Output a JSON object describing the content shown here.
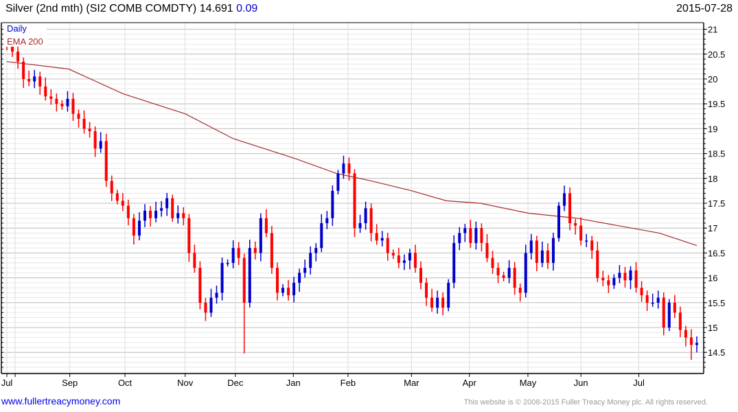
{
  "header": {
    "title": "Silver (2nd mth) (SI2 COMB COMDTY)",
    "last": "14.691",
    "change": "0.09",
    "date": "2015-07-28"
  },
  "footer": {
    "link": "www.fullertreacymoney.com",
    "copyright": "This website is © 2008-2015 Fuller Treacy Money plc. All rights reserved."
  },
  "colors": {
    "up": "#0000cc",
    "down": "#ff0000",
    "ema": "#a52a2a",
    "grid_major": "#c0c0c0",
    "grid_minor": "#e8e8e8"
  },
  "chart_data": {
    "type": "candlestick",
    "legend": [
      "Daily",
      "EMA 200"
    ],
    "legend_placement": "top-left",
    "ylim": [
      14.1,
      21.1
    ],
    "y_ticks": [
      "14.5",
      "15",
      "15.5",
      "16",
      "16.5",
      "17",
      "17.5",
      "18",
      "18.5",
      "19",
      "19.5",
      "20",
      "20.5",
      "21"
    ],
    "x_ticks": [
      {
        "label": "Jul",
        "index": 0
      },
      {
        "label": "",
        "index": 1.5
      },
      {
        "label": "Sep",
        "index": 11.4
      },
      {
        "label": "Oct",
        "index": 21.4
      },
      {
        "label": "Nov",
        "index": 32.3
      },
      {
        "label": "Dec",
        "index": 41.4
      },
      {
        "label": "Jan",
        "index": 51.9
      },
      {
        "label": "Feb",
        "index": 61.8
      },
      {
        "label": "Mar",
        "index": 73.3
      },
      {
        "label": "Apr",
        "index": 83.8
      },
      {
        "label": "May",
        "index": 94.4
      },
      {
        "label": "Jun",
        "index": 104
      },
      {
        "label": "Jul",
        "index": 114.5
      }
    ],
    "first_open": 20.75,
    "close": [
      20.65,
      20.55,
      20.35,
      20.0,
      19.95,
      20.05,
      19.85,
      19.65,
      19.6,
      19.5,
      19.45,
      19.6,
      19.3,
      19.2,
      19.0,
      18.95,
      18.6,
      18.75,
      17.95,
      17.7,
      17.55,
      17.45,
      17.2,
      16.85,
      17.15,
      17.35,
      17.2,
      17.35,
      17.4,
      17.6,
      17.2,
      17.3,
      17.2,
      16.5,
      16.2,
      15.5,
      15.3,
      15.6,
      15.7,
      16.3,
      16.3,
      16.6,
      16.4,
      15.5,
      16.6,
      16.5,
      17.2,
      16.9,
      16.2,
      15.7,
      15.8,
      15.65,
      15.9,
      16.1,
      16.2,
      16.5,
      16.6,
      17.1,
      17.2,
      17.75,
      18.1,
      18.3,
      18.1,
      17.0,
      17.1,
      17.4,
      16.9,
      16.75,
      16.8,
      16.5,
      16.45,
      16.3,
      16.35,
      16.5,
      16.2,
      15.9,
      15.6,
      15.4,
      15.6,
      15.4,
      15.9,
      16.7,
      16.9,
      17.0,
      16.7,
      17.0,
      16.7,
      16.4,
      16.2,
      16.05,
      16.0,
      16.2,
      15.8,
      15.7,
      16.5,
      16.75,
      16.3,
      16.55,
      16.3,
      16.8,
      17.45,
      17.7,
      17.1,
      17.05,
      16.75,
      16.75,
      16.55,
      16.0,
      15.95,
      15.85,
      16.0,
      16.1,
      15.95,
      16.15,
      15.8,
      15.65,
      15.5,
      15.5,
      15.6,
      15.0,
      15.5,
      15.3,
      14.95,
      14.8,
      14.65,
      14.69
    ],
    "wick": 0.12,
    "low_overrides": {
      "43": 14.48,
      "125": 14.5,
      "124": 14.35
    },
    "ema200": [
      [
        0,
        20.35
      ],
      [
        11.2,
        20.2
      ],
      [
        21.1,
        19.7
      ],
      [
        32.3,
        19.3
      ],
      [
        41,
        18.8
      ],
      [
        52.2,
        18.4
      ],
      [
        59.7,
        18.1
      ],
      [
        66,
        17.95
      ],
      [
        73.4,
        17.75
      ],
      [
        79.6,
        17.55
      ],
      [
        85.8,
        17.5
      ],
      [
        94.5,
        17.3
      ],
      [
        103.2,
        17.2
      ],
      [
        110.7,
        17.05
      ],
      [
        118.2,
        16.9
      ],
      [
        125,
        16.65
      ]
    ]
  }
}
